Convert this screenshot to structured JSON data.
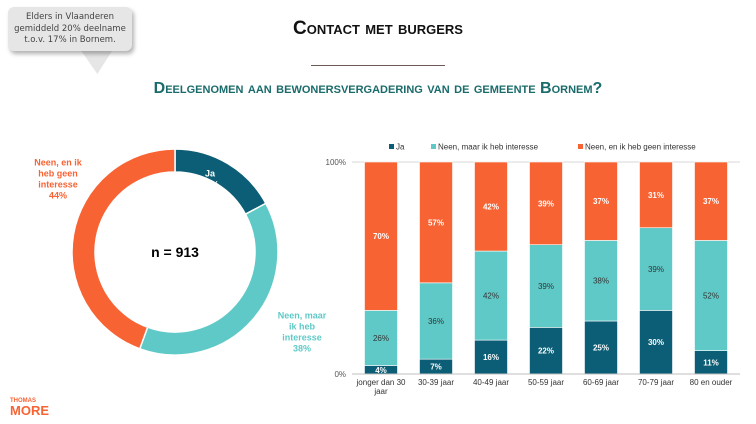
{
  "callout": {
    "text": "Elders in Vlaanderen gemiddeld 20% deelname t.o.v. 17% in Bornem.",
    "lines": [
      "Elders in Vlaanderen",
      "gemiddeld 20% deelname",
      "t.o.v. 17% in Bornem."
    ]
  },
  "title": "Contact met burgers",
  "subtitle": "Deelgenomen aan bewonersvergadering van de gemeente Bornem?",
  "logo": {
    "line1": "THOMAS",
    "line2": "MORE"
  },
  "colors": {
    "ja": "#0b5e75",
    "interesse": "#5fc9c7",
    "geen": "#f86334"
  },
  "chart_data": [
    {
      "type": "pie",
      "donut": true,
      "center_label": "n = 913",
      "slices": [
        {
          "name": "Ja",
          "value": 17,
          "label": "Ja\n17%"
        },
        {
          "name": "Neen, maar ik heb interesse",
          "value": 38,
          "label": "Neen, maar\nik heb\ninteresse\n38%"
        },
        {
          "name": "Neen, en ik heb geen interesse",
          "value": 44,
          "label": "Neen, en ik\nheb geen\ninteresse\n44%"
        }
      ]
    },
    {
      "type": "bar",
      "stacked": true,
      "legend": "top",
      "ylim": [
        0,
        100
      ],
      "yticks": [
        "0%",
        "100%"
      ],
      "categories": [
        "jonger dan 30 jaar",
        "30-39 jaar",
        "40-49 jaar",
        "50-59 jaar",
        "60-69 jaar",
        "70-79 jaar",
        "80 en ouder"
      ],
      "series": [
        {
          "name": "Ja",
          "values": [
            4,
            7,
            16,
            22,
            25,
            30,
            11
          ]
        },
        {
          "name": "Neen, maar ik heb interesse",
          "values": [
            26,
            36,
            42,
            39,
            38,
            39,
            52
          ]
        },
        {
          "name": "Neen, en ik heb geen interesse",
          "values": [
            70,
            57,
            42,
            39,
            37,
            31,
            37
          ]
        }
      ]
    }
  ]
}
